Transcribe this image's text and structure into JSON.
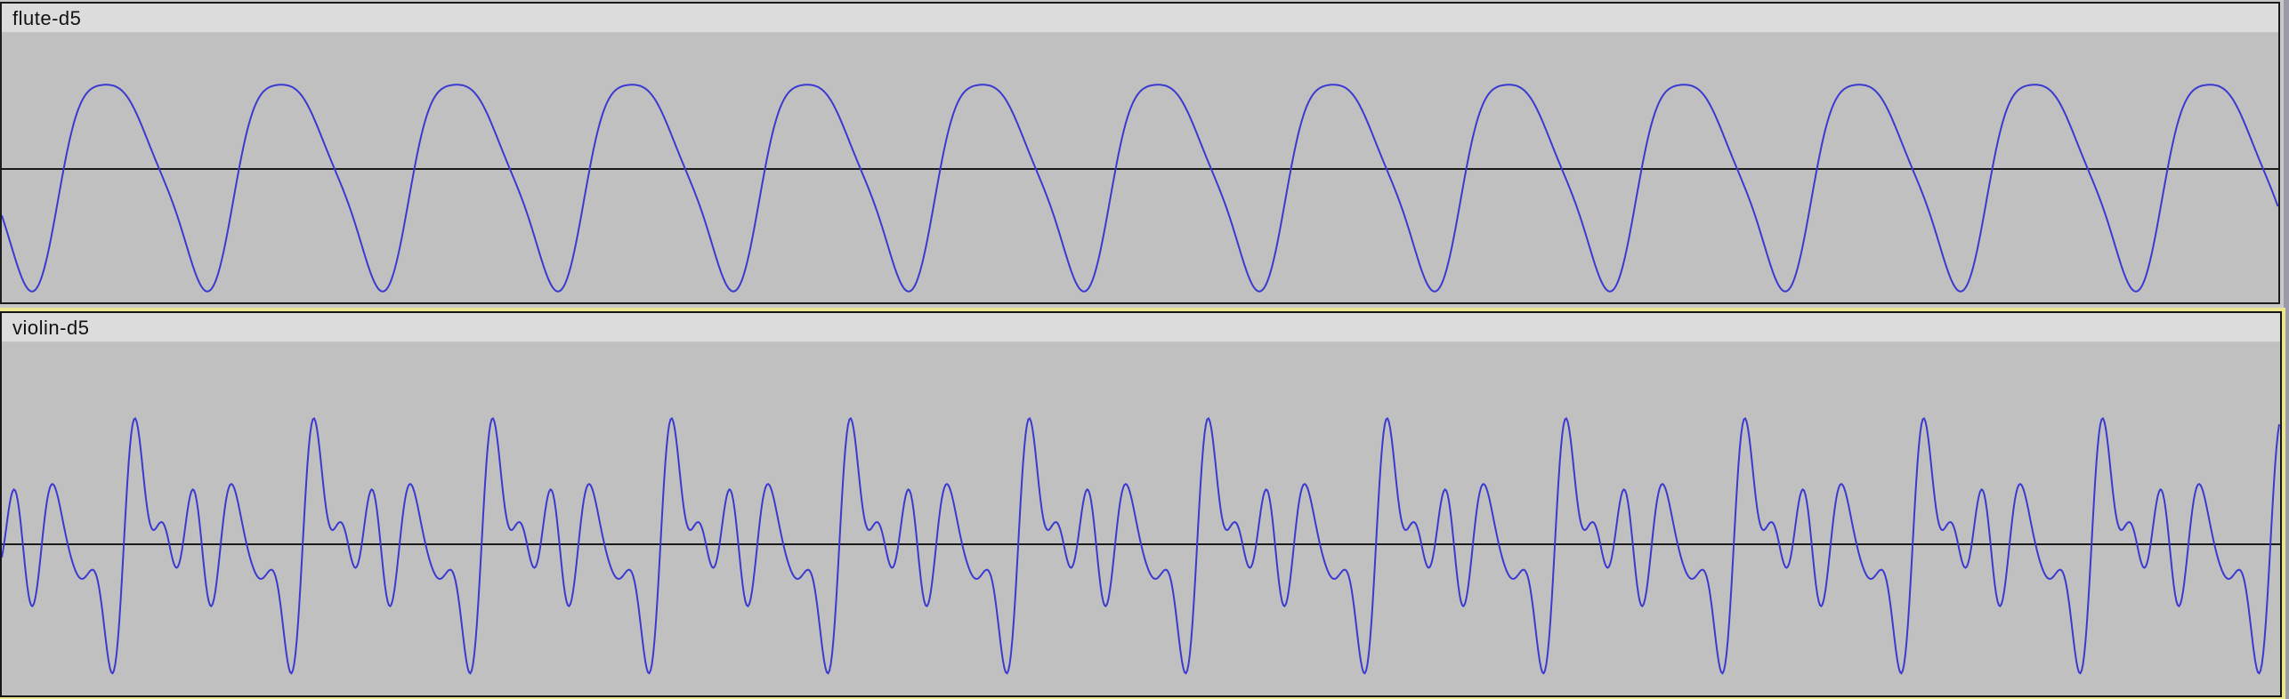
{
  "tracks": [
    {
      "name": "flute-d5",
      "wave_color": "#3a3ad0",
      "baseline_color": "#1a1a1a",
      "selected": false
    },
    {
      "name": "violin-d5",
      "wave_color": "#3a3ad0",
      "baseline_color": "#1a1a1a",
      "selected": true
    }
  ],
  "colors": {
    "track_background": "#c0c0c0",
    "header_background": "#dcdcdc",
    "selection_outline": "#e9e68d"
  }
}
